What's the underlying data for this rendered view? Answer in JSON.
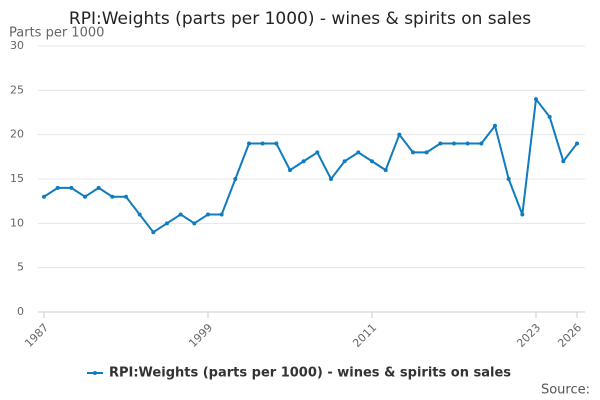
{
  "chart_data": {
    "type": "line",
    "title": "RPI:Weights (parts per 1000) - wines & spirits on sales",
    "y_label": "Parts per 1000",
    "source": "Source:",
    "x": [
      1987,
      1988,
      1989,
      1990,
      1991,
      1992,
      1993,
      1994,
      1995,
      1996,
      1997,
      1998,
      1999,
      2000,
      2001,
      2002,
      2003,
      2004,
      2005,
      2006,
      2007,
      2008,
      2009,
      2010,
      2011,
      2012,
      2013,
      2014,
      2015,
      2016,
      2017,
      2018,
      2019,
      2020,
      2021,
      2022,
      2023,
      2024,
      2025,
      2026
    ],
    "series": [
      {
        "name": "RPI:Weights (parts per 1000) - wines & spirits on sales",
        "color": "#0f7cbf",
        "values": [
          13,
          14,
          14,
          13,
          14,
          13,
          13,
          11,
          9,
          10,
          11,
          10,
          11,
          11,
          15,
          19,
          19,
          19,
          16,
          17,
          18,
          15,
          17,
          18,
          17,
          16,
          20,
          18,
          18,
          19,
          19,
          19,
          19,
          21,
          15,
          11,
          24,
          22,
          17,
          19
        ]
      }
    ],
    "xlim": [
      1987,
      2026
    ],
    "xticks": [
      1987,
      1999,
      2011,
      2023,
      2026
    ],
    "ylim": [
      0,
      30
    ],
    "yticks": [
      0,
      5,
      10,
      15,
      20,
      25,
      30
    ],
    "grid": true,
    "legend": "bottom"
  }
}
